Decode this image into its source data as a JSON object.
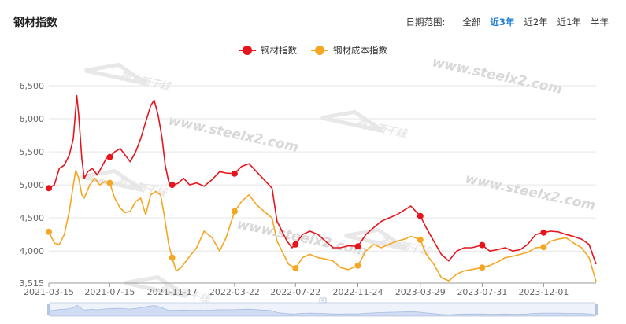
{
  "header": {
    "title": "钢材指数",
    "range_label": "日期范围:",
    "range_options": [
      "全部",
      "近3年",
      "近2年",
      "近1年",
      "半年"
    ],
    "range_active": 1
  },
  "colors": {
    "steel": "#e8141d",
    "cost": "#f5a623",
    "grid": "#e6e6e6"
  },
  "chart_data": {
    "type": "line",
    "title": "钢材指数",
    "legend_position": "top-center",
    "grid": true,
    "ylim": [
      3515,
      6500
    ],
    "y_ticks": [
      "3,515",
      "4,000",
      "4,500",
      "5,000",
      "5,500",
      "6,000",
      "6,500"
    ],
    "y_tick_values": [
      3515,
      4000,
      4500,
      5000,
      5500,
      6000,
      6500
    ],
    "x_range": [
      "2021-03-15",
      "2024-03-15"
    ],
    "x_ticks": [
      "2021-03-15",
      "2021-07-15",
      "2021-11-17",
      "2022-03-22",
      "2022-07-22",
      "2022-11-24",
      "2023-03-29",
      "2023-07-31",
      "2023-12-01"
    ],
    "series": [
      {
        "name": "钢材指数",
        "points": [
          [
            "2021-03-15",
            4950
          ],
          [
            "2021-03-26",
            5000
          ],
          [
            "2021-04-05",
            5250
          ],
          [
            "2021-04-15",
            5300
          ],
          [
            "2021-04-25",
            5450
          ],
          [
            "2021-05-03",
            5700
          ],
          [
            "2021-05-10",
            6350
          ],
          [
            "2021-05-14",
            6050
          ],
          [
            "2021-05-20",
            5400
          ],
          [
            "2021-05-25",
            5100
          ],
          [
            "2021-06-01",
            5200
          ],
          [
            "2021-06-10",
            5250
          ],
          [
            "2021-06-20",
            5150
          ],
          [
            "2021-07-01",
            5300
          ],
          [
            "2021-07-08",
            5400
          ],
          [
            "2021-07-15",
            5420
          ],
          [
            "2021-07-25",
            5500
          ],
          [
            "2021-08-05",
            5550
          ],
          [
            "2021-08-15",
            5450
          ],
          [
            "2021-08-25",
            5350
          ],
          [
            "2021-09-05",
            5500
          ],
          [
            "2021-09-15",
            5700
          ],
          [
            "2021-09-25",
            5950
          ],
          [
            "2021-10-05",
            6200
          ],
          [
            "2021-10-12",
            6280
          ],
          [
            "2021-10-20",
            6050
          ],
          [
            "2021-10-28",
            5700
          ],
          [
            "2021-11-03",
            5300
          ],
          [
            "2021-11-10",
            5050
          ],
          [
            "2021-11-17",
            5000
          ],
          [
            "2021-11-28",
            5020
          ],
          [
            "2021-12-10",
            5100
          ],
          [
            "2021-12-22",
            5000
          ],
          [
            "2022-01-05",
            5030
          ],
          [
            "2022-01-20",
            4980
          ],
          [
            "2022-02-05",
            5080
          ],
          [
            "2022-02-20",
            5200
          ],
          [
            "2022-03-05",
            5180
          ],
          [
            "2022-03-22",
            5170
          ],
          [
            "2022-04-05",
            5280
          ],
          [
            "2022-04-20",
            5320
          ],
          [
            "2022-05-05",
            5200
          ],
          [
            "2022-05-20",
            5080
          ],
          [
            "2022-06-05",
            4950
          ],
          [
            "2022-06-15",
            4450
          ],
          [
            "2022-06-25",
            4300
          ],
          [
            "2022-07-05",
            4150
          ],
          [
            "2022-07-15",
            4050
          ],
          [
            "2022-07-22",
            4100
          ],
          [
            "2022-08-05",
            4250
          ],
          [
            "2022-08-20",
            4300
          ],
          [
            "2022-09-05",
            4250
          ],
          [
            "2022-09-20",
            4150
          ],
          [
            "2022-10-05",
            4050
          ],
          [
            "2022-10-20",
            4050
          ],
          [
            "2022-11-05",
            4080
          ],
          [
            "2022-11-24",
            4070
          ],
          [
            "2022-12-10",
            4250
          ],
          [
            "2022-12-25",
            4350
          ],
          [
            "2023-01-10",
            4450
          ],
          [
            "2023-01-25",
            4500
          ],
          [
            "2023-02-10",
            4550
          ],
          [
            "2023-02-25",
            4620
          ],
          [
            "2023-03-10",
            4680
          ],
          [
            "2023-03-20",
            4600
          ],
          [
            "2023-03-29",
            4530
          ],
          [
            "2023-04-10",
            4350
          ],
          [
            "2023-04-25",
            4150
          ],
          [
            "2023-05-10",
            3950
          ],
          [
            "2023-05-25",
            3850
          ],
          [
            "2023-06-10",
            4000
          ],
          [
            "2023-06-25",
            4050
          ],
          [
            "2023-07-10",
            4050
          ],
          [
            "2023-07-31",
            4090
          ],
          [
            "2023-08-15",
            4000
          ],
          [
            "2023-08-30",
            4020
          ],
          [
            "2023-09-15",
            4050
          ],
          [
            "2023-09-30",
            4000
          ],
          [
            "2023-10-15",
            4020
          ],
          [
            "2023-10-30",
            4100
          ],
          [
            "2023-11-15",
            4250
          ],
          [
            "2023-12-01",
            4280
          ],
          [
            "2023-12-15",
            4300
          ],
          [
            "2023-12-30",
            4290
          ],
          [
            "2024-01-15",
            4250
          ],
          [
            "2024-01-30",
            4220
          ],
          [
            "2024-02-15",
            4180
          ],
          [
            "2024-03-01",
            4100
          ],
          [
            "2024-03-15",
            3800
          ]
        ],
        "markers": [
          "2021-03-15",
          "2021-07-15",
          "2021-11-17",
          "2022-03-22",
          "2022-07-22",
          "2022-11-24",
          "2023-03-29",
          "2023-07-31",
          "2023-12-01"
        ]
      },
      {
        "name": "钢材成本指数",
        "points": [
          [
            "2021-03-15",
            4290
          ],
          [
            "2021-03-26",
            4120
          ],
          [
            "2021-04-05",
            4100
          ],
          [
            "2021-04-15",
            4250
          ],
          [
            "2021-04-25",
            4600
          ],
          [
            "2021-05-03",
            5000
          ],
          [
            "2021-05-08",
            5220
          ],
          [
            "2021-05-14",
            5100
          ],
          [
            "2021-05-20",
            4850
          ],
          [
            "2021-05-25",
            4800
          ],
          [
            "2021-06-05",
            5000
          ],
          [
            "2021-06-15",
            5100
          ],
          [
            "2021-06-25",
            5000
          ],
          [
            "2021-07-05",
            5050
          ],
          [
            "2021-07-15",
            5030
          ],
          [
            "2021-07-25",
            4800
          ],
          [
            "2021-08-05",
            4650
          ],
          [
            "2021-08-15",
            4580
          ],
          [
            "2021-08-25",
            4600
          ],
          [
            "2021-09-05",
            4750
          ],
          [
            "2021-09-15",
            4800
          ],
          [
            "2021-09-25",
            4550
          ],
          [
            "2021-10-05",
            4850
          ],
          [
            "2021-10-15",
            4900
          ],
          [
            "2021-10-25",
            4850
          ],
          [
            "2021-11-01",
            4550
          ],
          [
            "2021-11-10",
            4100
          ],
          [
            "2021-11-17",
            3900
          ],
          [
            "2021-11-25",
            3700
          ],
          [
            "2021-12-05",
            3750
          ],
          [
            "2021-12-20",
            3900
          ],
          [
            "2022-01-05",
            4050
          ],
          [
            "2022-01-20",
            4300
          ],
          [
            "2022-02-05",
            4200
          ],
          [
            "2022-02-20",
            4000
          ],
          [
            "2022-03-05",
            4200
          ],
          [
            "2022-03-22",
            4600
          ],
          [
            "2022-04-05",
            4750
          ],
          [
            "2022-04-20",
            4850
          ],
          [
            "2022-05-05",
            4700
          ],
          [
            "2022-05-20",
            4600
          ],
          [
            "2022-06-05",
            4500
          ],
          [
            "2022-06-15",
            4150
          ],
          [
            "2022-06-25",
            4000
          ],
          [
            "2022-07-08",
            3800
          ],
          [
            "2022-07-22",
            3740
          ],
          [
            "2022-08-05",
            3900
          ],
          [
            "2022-08-20",
            3950
          ],
          [
            "2022-09-05",
            3900
          ],
          [
            "2022-09-20",
            3880
          ],
          [
            "2022-10-05",
            3850
          ],
          [
            "2022-10-20",
            3750
          ],
          [
            "2022-11-05",
            3720
          ],
          [
            "2022-11-24",
            3780
          ],
          [
            "2022-12-10",
            4000
          ],
          [
            "2022-12-25",
            4100
          ],
          [
            "2023-01-10",
            4050
          ],
          [
            "2023-01-25",
            4100
          ],
          [
            "2023-02-10",
            4150
          ],
          [
            "2023-02-25",
            4180
          ],
          [
            "2023-03-10",
            4220
          ],
          [
            "2023-03-20",
            4200
          ],
          [
            "2023-03-29",
            4170
          ],
          [
            "2023-04-10",
            3950
          ],
          [
            "2023-04-25",
            3800
          ],
          [
            "2023-05-10",
            3600
          ],
          [
            "2023-05-25",
            3550
          ],
          [
            "2023-06-10",
            3650
          ],
          [
            "2023-06-25",
            3700
          ],
          [
            "2023-07-10",
            3720
          ],
          [
            "2023-07-31",
            3750
          ],
          [
            "2023-08-15",
            3780
          ],
          [
            "2023-08-30",
            3830
          ],
          [
            "2023-09-15",
            3900
          ],
          [
            "2023-09-30",
            3920
          ],
          [
            "2023-10-15",
            3950
          ],
          [
            "2023-10-30",
            3980
          ],
          [
            "2023-11-15",
            4050
          ],
          [
            "2023-12-01",
            4060
          ],
          [
            "2023-12-15",
            4150
          ],
          [
            "2023-12-30",
            4180
          ],
          [
            "2024-01-15",
            4200
          ],
          [
            "2024-01-30",
            4120
          ],
          [
            "2024-02-15",
            4050
          ],
          [
            "2024-03-01",
            3900
          ],
          [
            "2024-03-15",
            3540
          ]
        ],
        "markers": [
          "2021-03-15",
          "2021-07-15",
          "2021-11-17",
          "2022-03-22",
          "2022-07-22",
          "2022-11-24",
          "2023-03-29",
          "2023-07-31",
          "2023-12-01"
        ]
      }
    ]
  }
}
